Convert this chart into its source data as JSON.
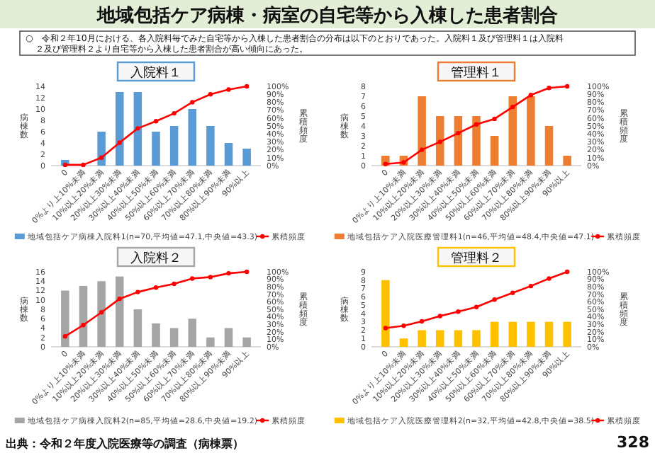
{
  "chart_data": [
    {
      "type": "other",
      "title": "地域包括ケア病棟・病室の自宅等から入棟した患者割合",
      "annotations": [
        "○　令和２年10月における、各入院料毎でみた自宅等から入棟した患者割合の分布は以下のとおりであった。入院料１及び管理料１は入院料２及び管理料２より自宅等から入棟した患者割合が高い傾向にあった。",
        "出典：令和２年度入院医療等の調査（病棟票）",
        "328"
      ]
    },
    {
      "type": "bar",
      "title": "入院料１",
      "ylabel": "病棟数",
      "y2label": "累積頻度",
      "categories": [
        "0",
        "0%より上10%未満",
        "10%以上20%未満",
        "20%以上30%未満",
        "30%以上40%未満",
        "40%以上50%未満",
        "50%以上60%未満",
        "60%以上70%未満",
        "70%以上80%未満",
        "80%以上90%未満",
        "90%以上"
      ],
      "ylim": [
        0,
        14
      ],
      "yticks": [
        0,
        2,
        4,
        6,
        8,
        10,
        12,
        14
      ],
      "y2lim": [
        0,
        100
      ],
      "y2ticks": [
        {
          "value": 0,
          "label": "0%"
        },
        {
          "value": 10,
          "label": "10%"
        },
        {
          "value": 20,
          "label": "20%"
        },
        {
          "value": 30,
          "label": "30%"
        },
        {
          "value": 40,
          "label": "40%"
        },
        {
          "value": 50,
          "label": "50%"
        },
        {
          "value": 60,
          "label": "60%"
        },
        {
          "value": 70,
          "label": "70%"
        },
        {
          "value": 80,
          "label": "80%"
        },
        {
          "value": 90,
          "label": "90%"
        },
        {
          "value": 100,
          "label": "100%"
        }
      ],
      "legend": "bottom",
      "marker": "circle",
      "series": [
        {
          "name": "地域包括ケア病棟入院料1(n=70,平均値=47.1,中央値=43.3)",
          "color": "#5b9bd5",
          "values": [
            1,
            0,
            6,
            13,
            13,
            6,
            7,
            10,
            7,
            4,
            3
          ]
        },
        {
          "name": "累積頻度",
          "type": "line",
          "axis": "y2",
          "color": "#ff0000",
          "values": [
            1,
            1,
            10,
            29,
            47,
            56,
            66,
            80,
            90,
            96,
            100
          ]
        }
      ]
    },
    {
      "type": "bar",
      "title": "管理料１",
      "ylabel": "病棟数",
      "y2label": "累積頻度",
      "categories": [
        "0",
        "0%より上10%未満",
        "10%以上20%未満",
        "20%以上30%未満",
        "30%以上40%未満",
        "40%以上50%未満",
        "50%以上60%未満",
        "60%以上70%未満",
        "70%以上80%未満",
        "80%以上90%未満",
        "90%以上"
      ],
      "ylim": [
        0,
        8
      ],
      "yticks": [
        0,
        1,
        2,
        3,
        4,
        5,
        6,
        7,
        8
      ],
      "y2lim": [
        0,
        100
      ],
      "y2ticks": [
        {
          "value": 0,
          "label": "0%"
        },
        {
          "value": 10,
          "label": "10%"
        },
        {
          "value": 20,
          "label": "20%"
        },
        {
          "value": 30,
          "label": "30%"
        },
        {
          "value": 40,
          "label": "40%"
        },
        {
          "value": 50,
          "label": "50%"
        },
        {
          "value": 60,
          "label": "60%"
        },
        {
          "value": 70,
          "label": "70%"
        },
        {
          "value": 80,
          "label": "80%"
        },
        {
          "value": 90,
          "label": "90%"
        },
        {
          "value": 100,
          "label": "100%"
        }
      ],
      "legend": "bottom",
      "marker": "circle",
      "series": [
        {
          "name": "地域包括ケア入院医療管理料1(n=46,平均値=48.4,中央値=47.1)",
          "color": "#ed7d31",
          "values": [
            1,
            1,
            7,
            5,
            5,
            5,
            3,
            7,
            7,
            4,
            1
          ]
        },
        {
          "name": "累積頻度",
          "type": "line",
          "axis": "y2",
          "color": "#ff0000",
          "values": [
            2,
            4,
            20,
            30,
            41,
            52,
            59,
            74,
            89,
            98,
            100
          ]
        }
      ]
    },
    {
      "type": "bar",
      "title": "入院料２",
      "ylabel": "病棟数",
      "y2label": "累積頻度",
      "categories": [
        "0",
        "0%より上10%未満",
        "10%以上20%未満",
        "20%以上30%未満",
        "30%以上40%未満",
        "40%以上50%未満",
        "50%以上60%未満",
        "60%以上70%未満",
        "70%以上80%未満",
        "80%以上90%未満",
        "90%以上"
      ],
      "ylim": [
        0,
        16
      ],
      "yticks": [
        0,
        2,
        4,
        6,
        8,
        10,
        12,
        14,
        16
      ],
      "y2lim": [
        0,
        100
      ],
      "y2ticks": [
        {
          "value": 0,
          "label": "0%"
        },
        {
          "value": 10,
          "label": "10%"
        },
        {
          "value": 20,
          "label": "20%"
        },
        {
          "value": 30,
          "label": "30%"
        },
        {
          "value": 40,
          "label": "40%"
        },
        {
          "value": 50,
          "label": "50%"
        },
        {
          "value": 60,
          "label": "60%"
        },
        {
          "value": 70,
          "label": "70%"
        },
        {
          "value": 80,
          "label": "80%"
        },
        {
          "value": 90,
          "label": "90%"
        },
        {
          "value": 100,
          "label": "100%"
        }
      ],
      "legend": "bottom",
      "marker": "circle",
      "series": [
        {
          "name": "地域包括ケア病棟入院料2(n=85,平均値=28.6,中央値=19.2)",
          "color": "#a5a5a5",
          "values": [
            12,
            13,
            14,
            15,
            8,
            5,
            4,
            6,
            2,
            4,
            2
          ]
        },
        {
          "name": "累積頻度",
          "type": "line",
          "axis": "y2",
          "color": "#ff0000",
          "values": [
            14,
            29,
            46,
            64,
            73,
            79,
            84,
            91,
            93,
            98,
            100
          ]
        }
      ]
    },
    {
      "type": "bar",
      "title": "管理料２",
      "ylabel": "病棟数",
      "y2label": "累積頻度",
      "categories": [
        "0",
        "0%より上10%未満",
        "10%以上20%未満",
        "20%以上30%未満",
        "30%以上40%未満",
        "40%以上50%未満",
        "50%以上60%未満",
        "60%以上70%未満",
        "70%以上80%未満",
        "80%以上90%未満",
        "90%以上"
      ],
      "ylim": [
        0,
        9
      ],
      "yticks": [
        0,
        1,
        2,
        3,
        4,
        5,
        6,
        7,
        8,
        9
      ],
      "y2lim": [
        0,
        100
      ],
      "y2ticks": [
        {
          "value": 0,
          "label": "0%"
        },
        {
          "value": 10,
          "label": "10%"
        },
        {
          "value": 20,
          "label": "20%"
        },
        {
          "value": 30,
          "label": "30%"
        },
        {
          "value": 40,
          "label": "40%"
        },
        {
          "value": 50,
          "label": "50%"
        },
        {
          "value": 60,
          "label": "60%"
        },
        {
          "value": 70,
          "label": "70%"
        },
        {
          "value": 80,
          "label": "80%"
        },
        {
          "value": 90,
          "label": "90%"
        },
        {
          "value": 100,
          "label": "100%"
        }
      ],
      "legend": "bottom",
      "marker": "circle",
      "series": [
        {
          "name": "地域包括ケア入院医療管理料2(n=32,平均値=42.8,中央値=38.5)",
          "color": "#ffc000",
          "values": [
            8,
            1,
            2,
            2,
            2,
            2,
            3,
            3,
            3,
            3,
            3
          ]
        },
        {
          "name": "累積頻度",
          "type": "line",
          "axis": "y2",
          "color": "#ff0000",
          "values": [
            25,
            28,
            34,
            41,
            47,
            53,
            63,
            72,
            81,
            91,
            100
          ]
        }
      ]
    }
  ]
}
